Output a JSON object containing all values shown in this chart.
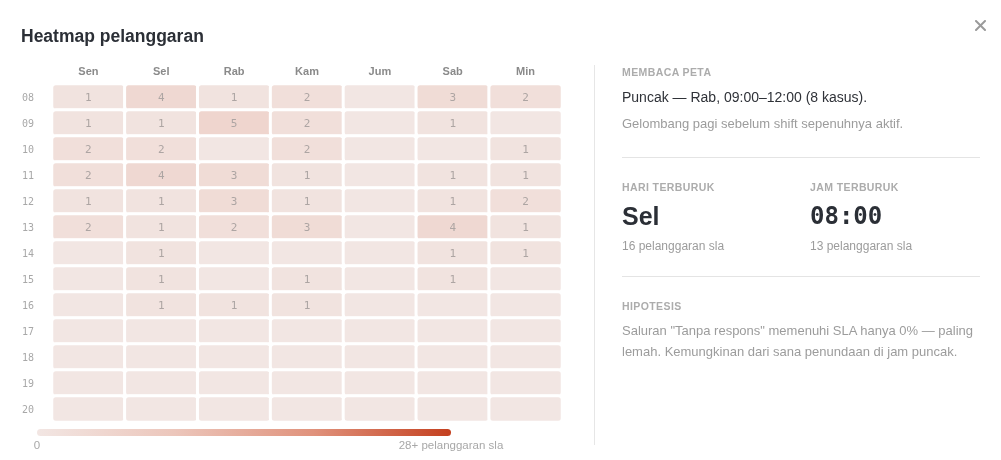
{
  "chart_data": [
    {
      "type": "heatmap",
      "title": "Heatmap pelanggaran",
      "categories": [
        "Sen",
        "Sel",
        "Rab",
        "Kam",
        "Jum",
        "Sab",
        "Min"
      ],
      "y_categories": [
        "08",
        "09",
        "10",
        "11",
        "12",
        "13",
        "14",
        "15",
        "16",
        "17",
        "18",
        "19",
        "20"
      ],
      "cells": [
        [
          1,
          4,
          1,
          2,
          0,
          3,
          2
        ],
        [
          1,
          1,
          5,
          2,
          0,
          1,
          0
        ],
        [
          2,
          2,
          0,
          2,
          0,
          0,
          1
        ],
        [
          2,
          4,
          3,
          1,
          0,
          1,
          1
        ],
        [
          1,
          1,
          3,
          1,
          0,
          1,
          2
        ],
        [
          2,
          1,
          2,
          3,
          0,
          4,
          1
        ],
        [
          0,
          1,
          0,
          0,
          0,
          1,
          1
        ],
        [
          0,
          1,
          0,
          1,
          0,
          1,
          0
        ],
        [
          0,
          1,
          1,
          1,
          0,
          0,
          0
        ],
        [
          0,
          0,
          0,
          0,
          0,
          0,
          0
        ],
        [
          0,
          0,
          0,
          0,
          0,
          0,
          0
        ],
        [
          0,
          0,
          0,
          0,
          0,
          0,
          0
        ],
        [
          0,
          0,
          0,
          0,
          0,
          0,
          0
        ]
      ],
      "cell_labels": [
        [
          "1",
          "4",
          "1",
          "2",
          null,
          "3",
          "2"
        ],
        [
          "1",
          "1",
          "5",
          "2",
          null,
          "1",
          null
        ],
        [
          "2",
          "2",
          null,
          "2",
          null,
          null,
          "1"
        ],
        [
          "2",
          "4",
          "3",
          "1",
          null,
          "1",
          "1"
        ],
        [
          "1",
          "1",
          "3",
          "1",
          null,
          "1",
          "2"
        ],
        [
          "2",
          "1",
          "2",
          "3",
          null,
          "4",
          "1"
        ],
        [
          null,
          "1",
          null,
          null,
          null,
          "1",
          "1"
        ],
        [
          null,
          "1",
          null,
          "1",
          null,
          "1",
          null
        ],
        [
          null,
          "1",
          "1",
          "1",
          null,
          null,
          null
        ],
        [
          null,
          null,
          null,
          null,
          null,
          null,
          null
        ],
        [
          null,
          null,
          null,
          null,
          null,
          null,
          null
        ],
        [
          null,
          null,
          null,
          null,
          null,
          null,
          null
        ],
        [
          null,
          null,
          null,
          null,
          null,
          null,
          null
        ]
      ],
      "clim": [
        0,
        28
      ],
      "cticks": [
        0,
        {
          "value": 28,
          "label": "28+ pelanggaran sla"
        }
      ]
    },
    {
      "type": "other",
      "annotations": [
        "MEMBACA PETA",
        "Puncak — Rab, 09:00–12:00 (8 kasus).",
        "Gelombang pagi sebelum shift sepenuhnya aktif.",
        "HARI TERBURUK",
        "Sel",
        "16 pelanggaran sla",
        "JAM TERBURUK",
        "08:00",
        "13 pelanggaran sla",
        "HIPOTESIS",
        "Saluran \"Tanpa respons\" memenuhi SLA hanya 0% — paling lemah. Kemungkinan dari sana penundaan di jam puncak."
      ]
    }
  ]
}
